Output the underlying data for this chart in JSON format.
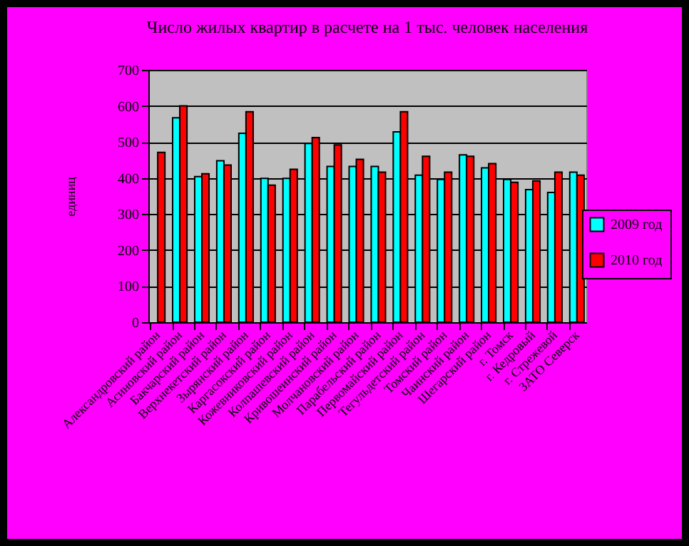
{
  "chart_data": {
    "type": "bar",
    "title": "Число жилых квартир в расчете на 1 тыс. человек населения",
    "ylabel": "единиц",
    "categories": [
      "Александровский район",
      "Асиновский район",
      "Бакчарский район",
      "Верхнекетский район",
      "Зырянский район",
      "Каргасокский район",
      "Кожевниковский район",
      "Колпашевский район",
      "Кривошеинский район",
      "Молчановский район",
      "Парабельский район",
      "Первомайский район",
      "Тегульдетский район",
      "Томский район",
      "Чаинский район",
      "Шегарский район",
      "г. Томск",
      "г. Кедровый",
      "г. Стрежевой",
      "ЗАТО Северск"
    ],
    "series": [
      {
        "name": "2009 год",
        "color": "#00ffff",
        "values": [
          null,
          567,
          404,
          448,
          524,
          399,
          399,
          496,
          432,
          432,
          432,
          528,
          408,
          396,
          464,
          428,
          396,
          368,
          360,
          416
        ]
      },
      {
        "name": "2010 год",
        "color": "#ff0000",
        "values": [
          471,
          600,
          412,
          436,
          584,
          380,
          424,
          512,
          492,
          452,
          416,
          584,
          460,
          416,
          460,
          440,
          388,
          392,
          416,
          408
        ]
      }
    ],
    "ylim": [
      0,
      700
    ],
    "yticks": [
      0,
      100,
      200,
      300,
      400,
      500,
      600,
      700
    ],
    "grid": "y",
    "legend": "right"
  }
}
